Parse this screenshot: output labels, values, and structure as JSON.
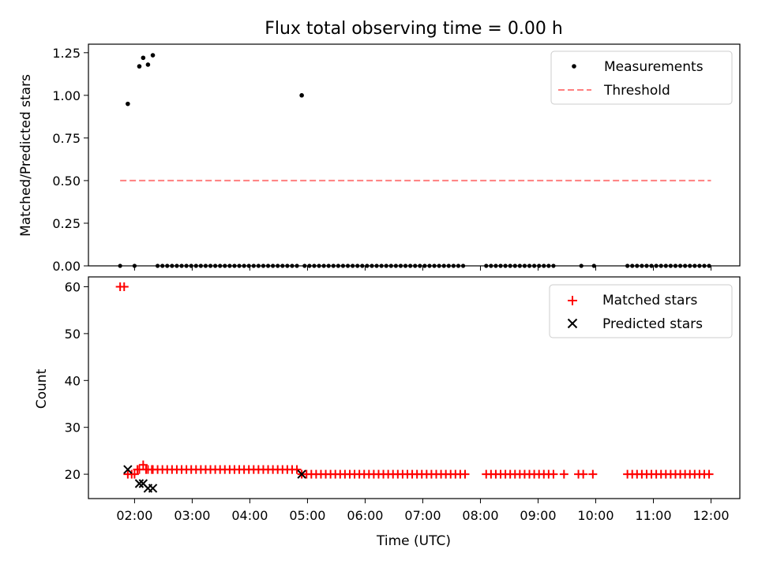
{
  "chart_data": {
    "title": "Flux total observing time = 0.00 h",
    "xlabel": "Time (UTC)",
    "x_unit": "hours UTC",
    "xlim": [
      1.2,
      12.5
    ],
    "xticks": [
      2,
      3,
      4,
      5,
      6,
      7,
      8,
      9,
      10,
      11,
      12
    ],
    "xtick_labels": [
      "02:00",
      "03:00",
      "04:00",
      "05:00",
      "06:00",
      "07:00",
      "08:00",
      "09:00",
      "10:00",
      "11:00",
      "12:00"
    ],
    "top": {
      "type": "scatter",
      "ylabel": "Matched/Predicted stars",
      "ylim": [
        0,
        1.3
      ],
      "yticks": [
        0,
        0.25,
        0.5,
        0.75,
        1.0,
        1.25
      ],
      "ytick_labels": [
        "0.00",
        "0.25",
        "0.50",
        "0.75",
        "1.00",
        "1.25"
      ],
      "legend_position": "top-right",
      "threshold": {
        "name": "Threshold",
        "value": 0.5,
        "x_range": [
          1.75,
          12.0
        ],
        "color": "#ff7f7f"
      },
      "measurements": {
        "name": "Measurements",
        "color": "#000000",
        "nonzero_points": [
          [
            1.883,
            0.95
          ],
          [
            2.083,
            1.17
          ],
          [
            2.15,
            1.22
          ],
          [
            2.233,
            1.18
          ],
          [
            2.317,
            1.235
          ],
          [
            4.9,
            1.0
          ]
        ],
        "zero_segments": [
          [
            1.75,
            1.82
          ],
          [
            2.0,
            2.0
          ],
          [
            2.4,
            4.83
          ],
          [
            4.95,
            7.75
          ],
          [
            8.1,
            9.3
          ],
          [
            9.75,
            9.8
          ],
          [
            9.97,
            10.0
          ],
          [
            10.55,
            12.0
          ]
        ]
      }
    },
    "bottom": {
      "type": "scatter",
      "ylabel": "Count",
      "ylim": [
        14.8,
        62.1
      ],
      "yticks": [
        20,
        30,
        40,
        50,
        60
      ],
      "ytick_labels": [
        "20",
        "30",
        "40",
        "50",
        "60"
      ],
      "legend_position": "top-right",
      "series": [
        {
          "name": "Matched stars",
          "marker": "+",
          "color": "#ff0000",
          "points": [
            [
              1.75,
              60
            ],
            [
              1.82,
              60
            ],
            [
              1.883,
              20
            ],
            [
              1.95,
              20
            ],
            [
              2.0,
              20
            ],
            [
              2.05,
              21
            ],
            [
              2.083,
              21
            ],
            [
              2.15,
              22
            ],
            [
              2.2,
              21
            ],
            [
              2.233,
              21
            ],
            [
              2.3,
              21
            ],
            [
              2.317,
              21
            ]
          ],
          "runs": [
            {
              "from": 2.4,
              "to": 4.83,
              "value": 21
            },
            {
              "from": 4.9,
              "to": 7.75,
              "value": 20
            },
            {
              "from": 8.1,
              "to": 9.3,
              "value": 20
            },
            {
              "from": 9.45,
              "to": 9.5,
              "value": 20
            },
            {
              "from": 9.7,
              "to": 9.8,
              "value": 20
            },
            {
              "from": 9.95,
              "to": 10.0,
              "value": 20
            },
            {
              "from": 10.55,
              "to": 12.0,
              "value": 20
            }
          ]
        },
        {
          "name": "Predicted stars",
          "marker": "x",
          "color": "#000000",
          "points": [
            [
              1.883,
              21
            ],
            [
              2.083,
              18
            ],
            [
              2.15,
              18
            ],
            [
              2.233,
              17
            ],
            [
              2.317,
              17
            ],
            [
              4.9,
              20
            ]
          ]
        }
      ]
    }
  }
}
